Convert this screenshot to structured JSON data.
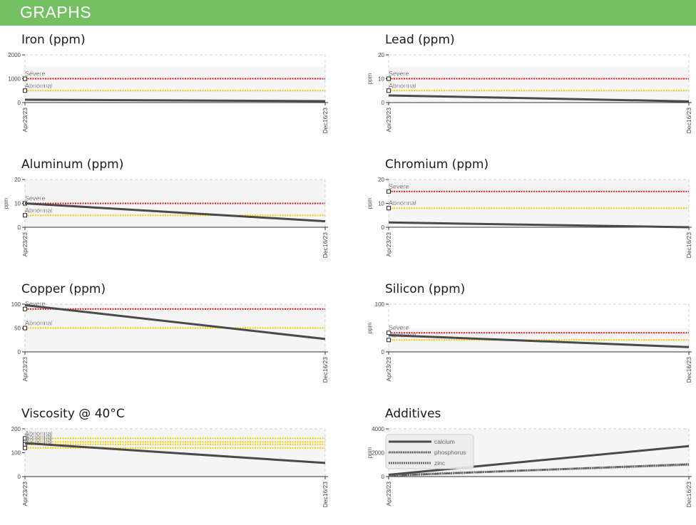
{
  "header": {
    "title": "GRAPHS"
  },
  "colors": {
    "header": "#75bf63",
    "severe": "#e8141e",
    "abnormal": "#f2cc00",
    "series": "#4a4a4a",
    "band": "#f5f5f5"
  },
  "chart_data": [
    {
      "type": "line",
      "title": "Iron (ppm)",
      "ylabel": "",
      "ylim": [
        0,
        2000
      ],
      "yticks": [
        "0",
        "1000",
        "2000"
      ],
      "ytick_values": [
        0,
        1000,
        2000
      ],
      "xticks": [
        "Apr23/23",
        "Dec16/23"
      ],
      "series": [
        {
          "values": [
            120,
            60
          ]
        }
      ],
      "thresholds": [
        {
          "name": "Severe",
          "value": 1000,
          "color": "#e8141e"
        },
        {
          "name": "Abnormal",
          "value": 500,
          "color": "#f2cc00"
        }
      ],
      "band": [
        0,
        1500
      ]
    },
    {
      "type": "line",
      "title": "Lead (ppm)",
      "ylabel": "ppm",
      "ylim": [
        0,
        20
      ],
      "yticks": [
        "0",
        "10",
        "20"
      ],
      "ytick_values": [
        0,
        10,
        20
      ],
      "xticks": [
        "Apr23/23",
        "Dec16/23"
      ],
      "series": [
        {
          "values": [
            3,
            0.5
          ]
        }
      ],
      "thresholds": [
        {
          "name": "Severe",
          "value": 10,
          "color": "#e8141e"
        },
        {
          "name": "Abnormal",
          "value": 5,
          "color": "#f2cc00"
        }
      ],
      "band": [
        0,
        15
      ]
    },
    {
      "type": "line",
      "title": "Aluminum (ppm)",
      "ylabel": "ppm",
      "ylim": [
        0,
        20
      ],
      "yticks": [
        "0",
        "10",
        "20"
      ],
      "ytick_values": [
        0,
        10,
        20
      ],
      "xticks": [
        "Apr23/23",
        "Dec16/23"
      ],
      "series": [
        {
          "values": [
            10,
            2.5
          ]
        }
      ],
      "thresholds": [
        {
          "name": "Severe",
          "value": 10,
          "color": "#e8141e"
        },
        {
          "name": "Abnormal",
          "value": 5,
          "color": "#f2cc00"
        }
      ],
      "band": [
        0,
        20
      ]
    },
    {
      "type": "line",
      "title": "Chromium (ppm)",
      "ylabel": "ppm",
      "ylim": [
        0,
        20
      ],
      "yticks": [
        "0",
        "10",
        "20"
      ],
      "ytick_values": [
        0,
        10,
        20
      ],
      "xticks": [
        "Apr23/23",
        "Dec16/23"
      ],
      "series": [
        {
          "values": [
            2,
            0
          ]
        }
      ],
      "thresholds": [
        {
          "name": "Severe",
          "value": 15,
          "color": "#e8141e"
        },
        {
          "name": "Abnormal",
          "value": 8,
          "color": "#f2cc00"
        }
      ],
      "band": [
        0,
        20
      ]
    },
    {
      "type": "line",
      "title": "Copper (ppm)",
      "ylabel": "",
      "ylim": [
        0,
        100
      ],
      "yticks": [
        "0",
        "50",
        "100"
      ],
      "ytick_values": [
        0,
        50,
        100
      ],
      "xticks": [
        "Apr23/23",
        "Dec16/23"
      ],
      "series": [
        {
          "values": [
            98,
            27
          ]
        }
      ],
      "thresholds": [
        {
          "name": "Severe",
          "value": 90,
          "color": "#e8141e"
        },
        {
          "name": "Abnormal",
          "value": 50,
          "color": "#f2cc00"
        }
      ],
      "band": [
        0,
        100
      ]
    },
    {
      "type": "line",
      "title": "Silicon (ppm)",
      "ylabel": "ppm",
      "ylim": [
        0,
        100
      ],
      "yticks": [
        "0",
        "100"
      ],
      "ytick_values": [
        0,
        100
      ],
      "xticks": [
        "Apr23/23",
        "Dec16/23"
      ],
      "series": [
        {
          "values": [
            35,
            10
          ]
        }
      ],
      "thresholds": [
        {
          "name": "Severe",
          "value": 40,
          "color": "#e8141e"
        },
        {
          "name": "Abnormal",
          "value": 25,
          "color": "#f2cc00"
        }
      ],
      "band": [
        0,
        50
      ]
    },
    {
      "type": "line",
      "title": "Viscosity @ 40°C",
      "ylabel": "",
      "ylim": [
        0,
        200
      ],
      "yticks": [
        "0",
        "100",
        "200"
      ],
      "ytick_values": [
        0,
        100,
        200
      ],
      "xticks": [
        "Apr23/23",
        "Dec16/23"
      ],
      "series": [
        {
          "values": [
            140,
            57
          ]
        }
      ],
      "thresholds": [
        {
          "name": "Abnormal",
          "value": 160,
          "color": "#f2cc00"
        },
        {
          "name": "Abnormal",
          "value": 145,
          "color": "#f2cc00"
        },
        {
          "name": "Abnormal",
          "value": 135,
          "color": "#f2cc00"
        },
        {
          "name": "Abnormal",
          "value": 120,
          "color": "#f2cc00"
        }
      ],
      "band": [
        0,
        200
      ]
    },
    {
      "type": "line",
      "title": "Additives",
      "ylabel": "ppm",
      "ylim": [
        0,
        4000
      ],
      "yticks": [
        "0",
        "2000",
        "4000"
      ],
      "ytick_values": [
        0,
        2000,
        4000
      ],
      "xticks": [
        "Apr23/23",
        "Dec16/23"
      ],
      "series": [
        {
          "name": "calcium",
          "values": [
            150,
            2550
          ],
          "style": "solid"
        },
        {
          "name": "phosphorus",
          "values": [
            100,
            1000
          ],
          "style": "dotted"
        },
        {
          "name": "zinc",
          "values": [
            60,
            1050
          ],
          "style": "dashed"
        }
      ],
      "thresholds": [],
      "band": [
        0,
        4000
      ],
      "legend": "left"
    }
  ]
}
